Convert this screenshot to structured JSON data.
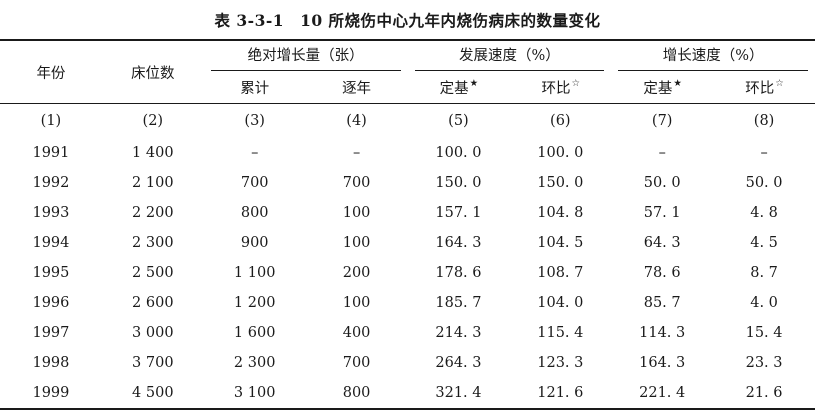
{
  "title": {
    "table_number": "表 3-3-1",
    "text": "10 所烧伤中心九年内烧伤病床的数量变化"
  },
  "header": {
    "year": "年份",
    "beds": "床位数",
    "groups": [
      {
        "label": "绝对增长量（张）",
        "subs": [
          {
            "label": "累计",
            "star": ""
          },
          {
            "label": "逐年",
            "star": ""
          }
        ]
      },
      {
        "label": "发展速度（%）",
        "subs": [
          {
            "label": "定基",
            "star": "★"
          },
          {
            "label": "环比",
            "star": "☆"
          }
        ]
      },
      {
        "label": "增长速度（%）",
        "subs": [
          {
            "label": "定基",
            "star": "★"
          },
          {
            "label": "环比",
            "star": "☆"
          }
        ]
      }
    ],
    "col_numbers": [
      "(1)",
      "(2)",
      "(3)",
      "(4)",
      "(5)",
      "(6)",
      "(7)",
      "(8)"
    ]
  },
  "rows": [
    [
      "1991",
      "1 400",
      "–",
      "–",
      "100. 0",
      "100. 0",
      "–",
      "–"
    ],
    [
      "1992",
      "2 100",
      "700",
      "700",
      "150. 0",
      "150. 0",
      "50. 0",
      "50. 0"
    ],
    [
      "1993",
      "2 200",
      "800",
      "100",
      "157. 1",
      "104. 8",
      "57. 1",
      "4. 8"
    ],
    [
      "1994",
      "2 300",
      "900",
      "100",
      "164. 3",
      "104. 5",
      "64. 3",
      "4. 5"
    ],
    [
      "1995",
      "2 500",
      "1 100",
      "200",
      "178. 6",
      "108. 7",
      "78. 6",
      "8. 7"
    ],
    [
      "1996",
      "2 600",
      "1 200",
      "100",
      "185. 7",
      "104. 0",
      "85. 7",
      "4. 0"
    ],
    [
      "1997",
      "3 000",
      "1 600",
      "400",
      "214. 3",
      "115. 4",
      "114. 3",
      "15. 4"
    ],
    [
      "1998",
      "3 700",
      "2 300",
      "700",
      "264. 3",
      "123. 3",
      "164. 3",
      "23. 3"
    ],
    [
      "1999",
      "4 500",
      "3 100",
      "800",
      "321. 4",
      "121. 6",
      "221. 4",
      "21. 6"
    ]
  ]
}
